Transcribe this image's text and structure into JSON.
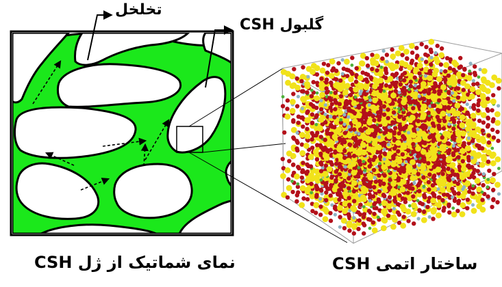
{
  "labels": {
    "porosity": "تخلخل",
    "globule": "گلبول CSH"
  },
  "captions": {
    "gel_schematic": "نمای شماتیک از ژل CSH",
    "atomic_structure": "ساختار اتمی CSH"
  },
  "colors": {
    "gel_green": "#1be81b",
    "outline": "#000000",
    "pore_white": "#ffffff",
    "atom_red": "#b3101a",
    "atom_yellow": "#f1e21a",
    "atom_blue": "#8fb3c3",
    "atom_green": "#4fb03a"
  }
}
